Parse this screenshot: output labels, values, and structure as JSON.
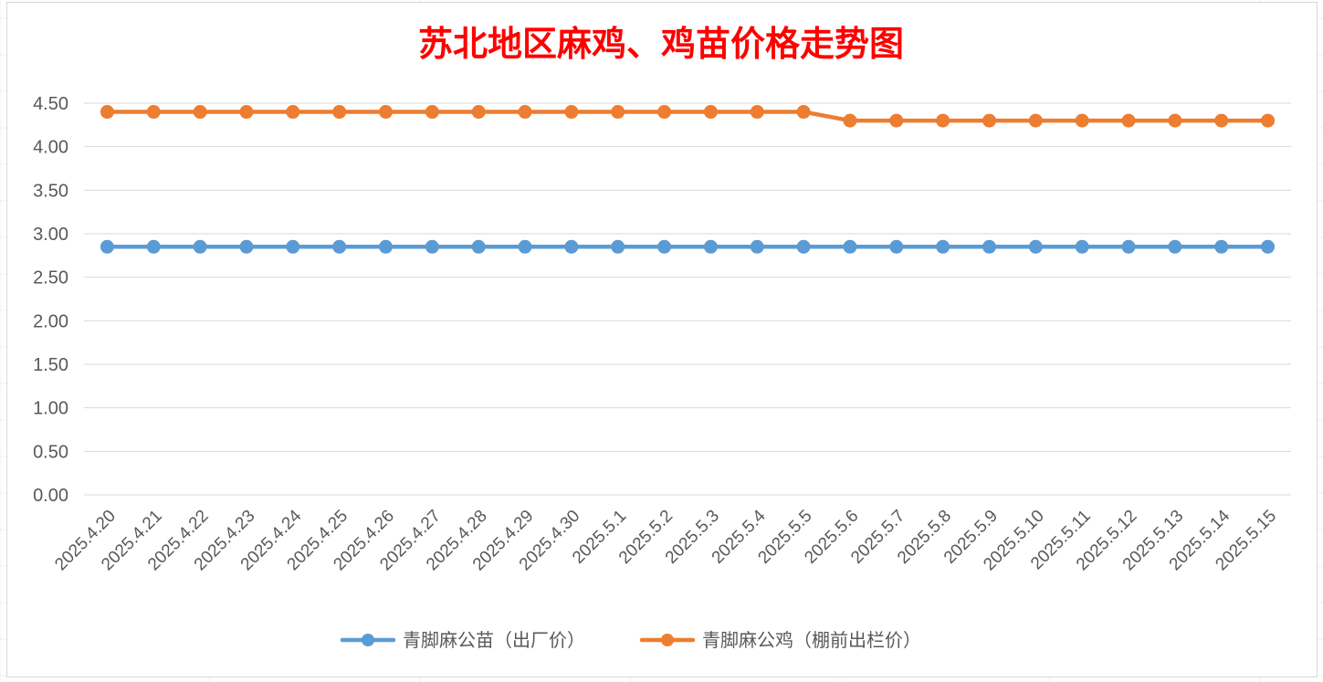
{
  "chart_data": {
    "type": "line",
    "title": "苏北地区麻鸡、鸡苗价格走势图",
    "xlabel": "",
    "ylabel": "",
    "ylim": [
      0,
      4.5
    ],
    "yticks": [
      "0.00",
      "0.50",
      "1.00",
      "1.50",
      "2.00",
      "2.50",
      "3.00",
      "3.50",
      "4.00",
      "4.50"
    ],
    "grid": true,
    "legend_position": "bottom",
    "categories": [
      "2025.4.20",
      "2025.4.21",
      "2025.4.22",
      "2025.4.23",
      "2025.4.24",
      "2025.4.25",
      "2025.4.26",
      "2025.4.27",
      "2025.4.28",
      "2025.4.29",
      "2025.4.30",
      "2025.5.1",
      "2025.5.2",
      "2025.5.3",
      "2025.5.4",
      "2025.5.5",
      "2025.5.6",
      "2025.5.7",
      "2025.5.8",
      "2025.5.9",
      "2025.5.10",
      "2025.5.11",
      "2025.5.12",
      "2025.5.13",
      "2025.5.14",
      "2025.5.15"
    ],
    "series": [
      {
        "name": "青脚麻公苗（出厂价）",
        "color": "#5b9bd5",
        "values": [
          2.85,
          2.85,
          2.85,
          2.85,
          2.85,
          2.85,
          2.85,
          2.85,
          2.85,
          2.85,
          2.85,
          2.85,
          2.85,
          2.85,
          2.85,
          2.85,
          2.85,
          2.85,
          2.85,
          2.85,
          2.85,
          2.85,
          2.85,
          2.85,
          2.85,
          2.85
        ]
      },
      {
        "name": "青脚麻公鸡（棚前出栏价）",
        "color": "#ed7d31",
        "values": [
          4.4,
          4.4,
          4.4,
          4.4,
          4.4,
          4.4,
          4.4,
          4.4,
          4.4,
          4.4,
          4.4,
          4.4,
          4.4,
          4.4,
          4.4,
          4.4,
          4.3,
          4.3,
          4.3,
          4.3,
          4.3,
          4.3,
          4.3,
          4.3,
          4.3,
          4.3
        ]
      }
    ]
  }
}
